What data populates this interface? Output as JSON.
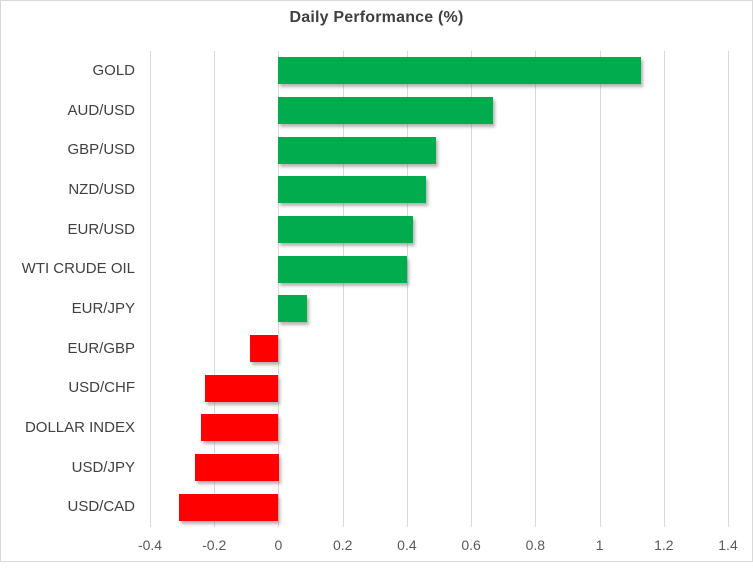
{
  "chart_data": {
    "type": "bar",
    "orientation": "horizontal",
    "title": "Daily Performance (%)",
    "categories": [
      "GOLD",
      "AUD/USD",
      "GBP/USD",
      "NZD/USD",
      "EUR/USD",
      "WTI CRUDE OIL",
      "EUR/JPY",
      "EUR/GBP",
      "USD/CHF",
      "DOLLAR INDEX",
      "USD/JPY",
      "USD/CAD"
    ],
    "values": [
      1.13,
      0.67,
      0.49,
      0.46,
      0.42,
      0.4,
      0.09,
      -0.09,
      -0.23,
      -0.24,
      -0.26,
      -0.31
    ],
    "xlabel": "",
    "ylabel": "",
    "xlim": [
      -0.4,
      1.4
    ],
    "x_ticks": [
      -0.4,
      -0.2,
      0,
      0.2,
      0.4,
      0.6,
      0.8,
      1,
      1.2,
      1.4
    ],
    "x_tick_labels": [
      "-0.4",
      "-0.2",
      "0",
      "0.2",
      "0.4",
      "0.6",
      "0.8",
      "1",
      "1.2",
      "1.4"
    ],
    "grid": "vertical-on",
    "legend": "none",
    "colors": {
      "positive_bar": "#00AC4E",
      "negative_bar": "#FF0000",
      "gridline": "#D9D9D9",
      "title_text": "#3F3F3F",
      "category_text": "#404040",
      "tick_text": "#595959",
      "frame_border": "#D9D9D9",
      "background": "#FFFFFF"
    }
  }
}
